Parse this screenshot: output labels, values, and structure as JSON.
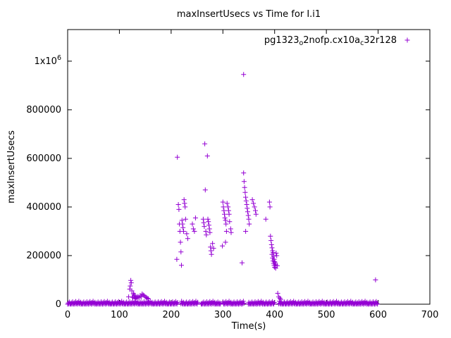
{
  "window": {
    "background": "#ffffff"
  },
  "chart_data": {
    "type": "scatter",
    "title": "maxInsertUsecs vs Time for I.i1",
    "xlabel": "Time(s)",
    "ylabel": "maxInsertUsecs",
    "xlim": [
      0,
      700
    ],
    "ylim": [
      0,
      1130000
    ],
    "xticks": [
      0,
      100,
      200,
      300,
      400,
      500,
      600,
      700
    ],
    "yticks": [
      {
        "value": 0,
        "label": "0"
      },
      {
        "value": 200000,
        "label": "200000"
      },
      {
        "value": 400000,
        "label": "400000"
      },
      {
        "value": 600000,
        "label": "600000"
      },
      {
        "value": 800000,
        "label": "800000"
      },
      {
        "value": 1000000,
        "label": "1x10^6"
      }
    ],
    "grid": false,
    "marker": "plus",
    "marker_color": "#9400d3",
    "legend": {
      "position": "top-right",
      "label_plain": "pg1323_o2nofp.cx10a_c32r128",
      "label_parts": [
        {
          "text": "pg1323",
          "sub": false
        },
        {
          "text": "o",
          "sub": true
        },
        {
          "text": "2nofp.cx10a",
          "sub": false
        },
        {
          "text": "c",
          "sub": true
        },
        {
          "text": "32r128",
          "sub": false
        }
      ]
    },
    "series": [
      {
        "name": "pg1323_o2nofp.cx10a_c32r128",
        "points": [
          [
            118,
            30000
          ],
          [
            120,
            62000
          ],
          [
            121,
            75000
          ],
          [
            122,
            98000
          ],
          [
            123,
            88000
          ],
          [
            124,
            55000
          ],
          [
            125,
            30000
          ],
          [
            126,
            28000
          ],
          [
            127,
            45000
          ],
          [
            128,
            40000
          ],
          [
            129,
            35000
          ],
          [
            130,
            25000
          ],
          [
            131,
            30000
          ],
          [
            132,
            22000
          ],
          [
            134,
            28000
          ],
          [
            136,
            32000
          ],
          [
            138,
            26000
          ],
          [
            140,
            35000
          ],
          [
            142,
            30000
          ],
          [
            144,
            42000
          ],
          [
            146,
            38000
          ],
          [
            148,
            35000
          ],
          [
            150,
            30000
          ],
          [
            152,
            28000
          ],
          [
            154,
            25000
          ],
          [
            156,
            22000
          ],
          [
            211,
            185000
          ],
          [
            212,
            605000
          ],
          [
            214,
            410000
          ],
          [
            215,
            390000
          ],
          [
            216,
            330000
          ],
          [
            217,
            300000
          ],
          [
            218,
            255000
          ],
          [
            219,
            215000
          ],
          [
            220,
            160000
          ],
          [
            221,
            345000
          ],
          [
            222,
            330000
          ],
          [
            223,
            315000
          ],
          [
            224,
            300000
          ],
          [
            225,
            430000
          ],
          [
            226,
            415000
          ],
          [
            227,
            400000
          ],
          [
            228,
            350000
          ],
          [
            230,
            290000
          ],
          [
            232,
            270000
          ],
          [
            241,
            330000
          ],
          [
            243,
            310000
          ],
          [
            245,
            300000
          ],
          [
            247,
            355000
          ],
          [
            262,
            350000
          ],
          [
            263,
            335000
          ],
          [
            264,
            320000
          ],
          [
            265,
            660000
          ],
          [
            266,
            470000
          ],
          [
            267,
            300000
          ],
          [
            268,
            285000
          ],
          [
            270,
            610000
          ],
          [
            271,
            350000
          ],
          [
            272,
            340000
          ],
          [
            273,
            325000
          ],
          [
            274,
            310000
          ],
          [
            275,
            295000
          ],
          [
            276,
            235000
          ],
          [
            277,
            220000
          ],
          [
            278,
            205000
          ],
          [
            280,
            250000
          ],
          [
            282,
            230000
          ],
          [
            299,
            240000
          ],
          [
            300,
            420000
          ],
          [
            301,
            400000
          ],
          [
            302,
            385000
          ],
          [
            303,
            370000
          ],
          [
            304,
            355000
          ],
          [
            305,
            345000
          ],
          [
            305,
            255000
          ],
          [
            306,
            330000
          ],
          [
            307,
            300000
          ],
          [
            308,
            415000
          ],
          [
            310,
            400000
          ],
          [
            311,
            385000
          ],
          [
            312,
            370000
          ],
          [
            313,
            340000
          ],
          [
            315,
            310000
          ],
          [
            316,
            295000
          ],
          [
            337,
            170000
          ],
          [
            340,
            945000
          ],
          [
            340,
            540000
          ],
          [
            341,
            505000
          ],
          [
            342,
            480000
          ],
          [
            343,
            460000
          ],
          [
            344,
            440000
          ],
          [
            344,
            300000
          ],
          [
            345,
            425000
          ],
          [
            346,
            410000
          ],
          [
            347,
            395000
          ],
          [
            348,
            380000
          ],
          [
            349,
            365000
          ],
          [
            350,
            350000
          ],
          [
            351,
            330000
          ],
          [
            357,
            430000
          ],
          [
            359,
            415000
          ],
          [
            361,
            400000
          ],
          [
            363,
            385000
          ],
          [
            364,
            370000
          ],
          [
            383,
            350000
          ],
          [
            390,
            420000
          ],
          [
            391,
            400000
          ],
          [
            392,
            280000
          ],
          [
            393,
            262000
          ],
          [
            394,
            245000
          ],
          [
            395,
            232000
          ],
          [
            395,
            205000
          ],
          [
            396,
            220000
          ],
          [
            396,
            190000
          ],
          [
            397,
            212000
          ],
          [
            397,
            178000
          ],
          [
            398,
            198000
          ],
          [
            398,
            168000
          ],
          [
            399,
            185000
          ],
          [
            399,
            160000
          ],
          [
            400,
            175000
          ],
          [
            400,
            152000
          ],
          [
            401,
            170000
          ],
          [
            402,
            163000
          ],
          [
            402,
            148000
          ],
          [
            403,
            210000
          ],
          [
            404,
            200000
          ],
          [
            405,
            158000
          ],
          [
            406,
            45000
          ],
          [
            408,
            30000
          ],
          [
            410,
            25000
          ],
          [
            412,
            20000
          ],
          [
            595,
            100000
          ]
        ]
      }
    ],
    "baseline_band": {
      "description": "dense band of samples at y near 0",
      "y_min": 0,
      "y_max": 12000,
      "step": 1.2,
      "segments": [
        [
          0,
          213
        ],
        [
          219,
          252
        ],
        [
          258,
          296
        ],
        [
          300,
          341
        ],
        [
          349,
          400
        ],
        [
          408,
          600
        ]
      ]
    }
  }
}
